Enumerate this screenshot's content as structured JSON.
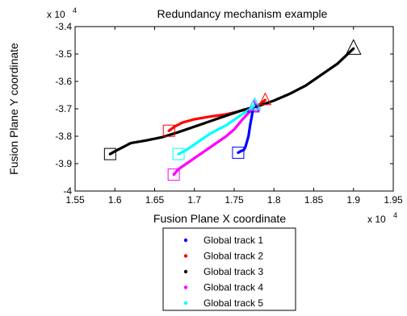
{
  "chart_data": {
    "type": "scatter",
    "title": "Redundancy mechanism example",
    "xlabel": "Fusion Plane X coordinate",
    "ylabel": "Fusion Plane Y coordinate",
    "x_multiplier": "x 10",
    "x_exponent": "4",
    "y_multiplier": "x 10",
    "y_exponent": "4",
    "xlim": [
      1.55,
      1.95
    ],
    "ylim": [
      -4.0,
      -3.4
    ],
    "xticks": [
      "1.55",
      "1.6",
      "1.65",
      "1.7",
      "1.75",
      "1.8",
      "1.85",
      "1.9",
      "1.95"
    ],
    "yticks": [
      "-3.4",
      "-3.5",
      "-3.6",
      "-3.7",
      "-3.8",
      "-3.9",
      "-4"
    ],
    "legend_position": "bottom-outside",
    "series": [
      {
        "name": "Global track 1",
        "color": "#0000ff",
        "start_marker": "square",
        "end_marker": "triangle",
        "points": [
          [
            1.755,
            -3.86
          ],
          [
            1.758,
            -3.855
          ],
          [
            1.762,
            -3.85
          ],
          [
            1.764,
            -3.84
          ],
          [
            1.766,
            -3.82
          ],
          [
            1.768,
            -3.8
          ],
          [
            1.769,
            -3.78
          ],
          [
            1.77,
            -3.76
          ],
          [
            1.771,
            -3.745
          ],
          [
            1.772,
            -3.73
          ],
          [
            1.773,
            -3.71
          ],
          [
            1.774,
            -3.695
          ]
        ]
      },
      {
        "name": "Global track 2",
        "color": "#ff0000",
        "start_marker": "square",
        "end_marker": "triangle",
        "points": [
          [
            1.668,
            -3.78
          ],
          [
            1.675,
            -3.765
          ],
          [
            1.685,
            -3.75
          ],
          [
            1.7,
            -3.738
          ],
          [
            1.72,
            -3.728
          ],
          [
            1.74,
            -3.72
          ],
          [
            1.755,
            -3.71
          ],
          [
            1.768,
            -3.7
          ],
          [
            1.78,
            -3.688
          ],
          [
            1.789,
            -3.668
          ]
        ]
      },
      {
        "name": "Global track 3",
        "color": "#000000",
        "start_marker": "square",
        "end_marker": "triangle",
        "points": [
          [
            1.594,
            -3.865
          ],
          [
            1.6,
            -3.855
          ],
          [
            1.61,
            -3.84
          ],
          [
            1.62,
            -3.825
          ],
          [
            1.64,
            -3.815
          ],
          [
            1.66,
            -3.803
          ],
          [
            1.68,
            -3.785
          ],
          [
            1.7,
            -3.765
          ],
          [
            1.72,
            -3.745
          ],
          [
            1.74,
            -3.725
          ],
          [
            1.76,
            -3.705
          ],
          [
            1.78,
            -3.69
          ],
          [
            1.8,
            -3.67
          ],
          [
            1.82,
            -3.645
          ],
          [
            1.84,
            -3.615
          ],
          [
            1.86,
            -3.575
          ],
          [
            1.88,
            -3.535
          ],
          [
            1.9,
            -3.48
          ]
        ]
      },
      {
        "name": "Global track 4",
        "color": "#ff00ff",
        "start_marker": "square",
        "end_marker": "triangle",
        "points": [
          [
            1.674,
            -3.94
          ],
          [
            1.68,
            -3.92
          ],
          [
            1.69,
            -3.9
          ],
          [
            1.7,
            -3.88
          ],
          [
            1.71,
            -3.86
          ],
          [
            1.72,
            -3.84
          ],
          [
            1.73,
            -3.82
          ],
          [
            1.74,
            -3.8
          ],
          [
            1.75,
            -3.775
          ],
          [
            1.76,
            -3.74
          ],
          [
            1.768,
            -3.715
          ],
          [
            1.775,
            -3.69
          ]
        ]
      },
      {
        "name": "Global track 5",
        "color": "#00ffff",
        "start_marker": "square",
        "end_marker": "triangle",
        "points": [
          [
            1.68,
            -3.865
          ],
          [
            1.69,
            -3.85
          ],
          [
            1.7,
            -3.83
          ],
          [
            1.71,
            -3.81
          ],
          [
            1.72,
            -3.79
          ],
          [
            1.73,
            -3.775
          ],
          [
            1.74,
            -3.76
          ],
          [
            1.75,
            -3.74
          ],
          [
            1.76,
            -3.72
          ],
          [
            1.768,
            -3.705
          ],
          [
            1.776,
            -3.685
          ]
        ]
      }
    ]
  }
}
